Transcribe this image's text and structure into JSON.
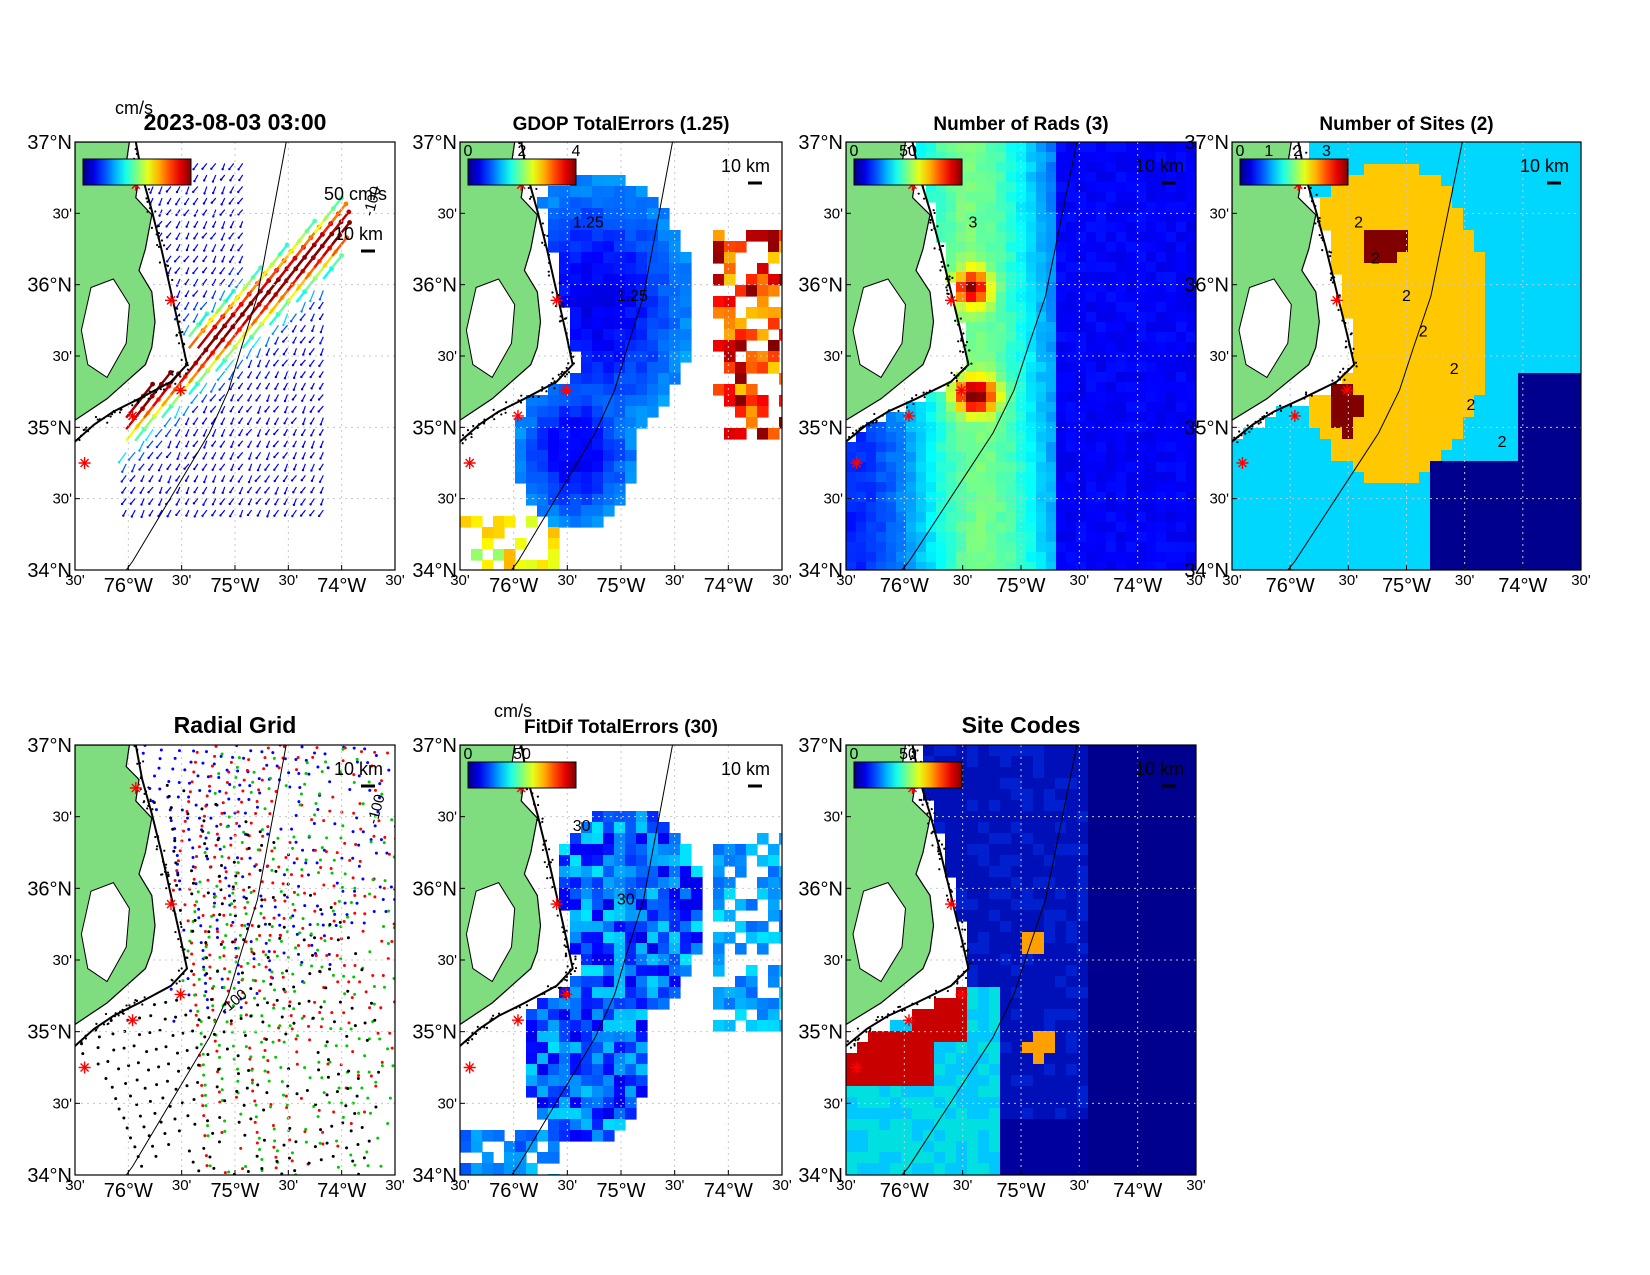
{
  "figure": {
    "timestamp": "2023-08-03 03:00",
    "unit_label": "cm/s",
    "scale_vector_label": "50 cm/s",
    "scale_bar_label": "10 km",
    "isobath_label": "-100"
  },
  "axes_labels": {
    "lat": [
      "37°N",
      "30'",
      "36°N",
      "30'",
      "35°N",
      "30'",
      "34°N"
    ],
    "lon": [
      "30'",
      "76°W",
      "30'",
      "75°W",
      "30'",
      "74°W",
      "30'"
    ]
  },
  "panels": [
    {
      "id": "currents",
      "title": "2023-08-03 03:00",
      "colorbar_ticks": [],
      "colorbar_unit": "cm/s",
      "kind": "vectors"
    },
    {
      "id": "gdop",
      "title": "GDOP TotalErrors (1.25)",
      "colorbar_ticks": [
        "0",
        "2",
        "4"
      ],
      "contour_labels": [
        "1.25",
        "1.25"
      ],
      "kind": "raster"
    },
    {
      "id": "nrads",
      "title": "Number of Rads (3)",
      "colorbar_ticks": [
        "0",
        "50"
      ],
      "contour_labels": [
        "3"
      ],
      "kind": "raster"
    },
    {
      "id": "nsites",
      "title": "Number of Sites (2)",
      "colorbar_ticks": [
        "0",
        "1",
        "2",
        "3"
      ],
      "contour_labels": [
        "2",
        "2",
        "2",
        "2",
        "2",
        "2",
        "2"
      ],
      "kind": "raster"
    },
    {
      "id": "radgrid",
      "title": "Radial Grid",
      "colorbar_ticks": [],
      "kind": "radial"
    },
    {
      "id": "fitdif",
      "title": "FitDif TotalErrors (30)",
      "colorbar_ticks": [
        "0",
        "50"
      ],
      "colorbar_unit": "cm/s",
      "contour_labels": [
        "30",
        "30"
      ],
      "kind": "raster"
    },
    {
      "id": "sitecodes",
      "title": "Site Codes",
      "colorbar_ticks": [
        "0",
        "50"
      ],
      "kind": "raster"
    }
  ],
  "colors": {
    "land": "#7fdc7f",
    "site_marker": "#ff0000",
    "radial_site_colors": [
      "#0000ff",
      "#ff0000",
      "#00c800",
      "#000000"
    ]
  }
}
